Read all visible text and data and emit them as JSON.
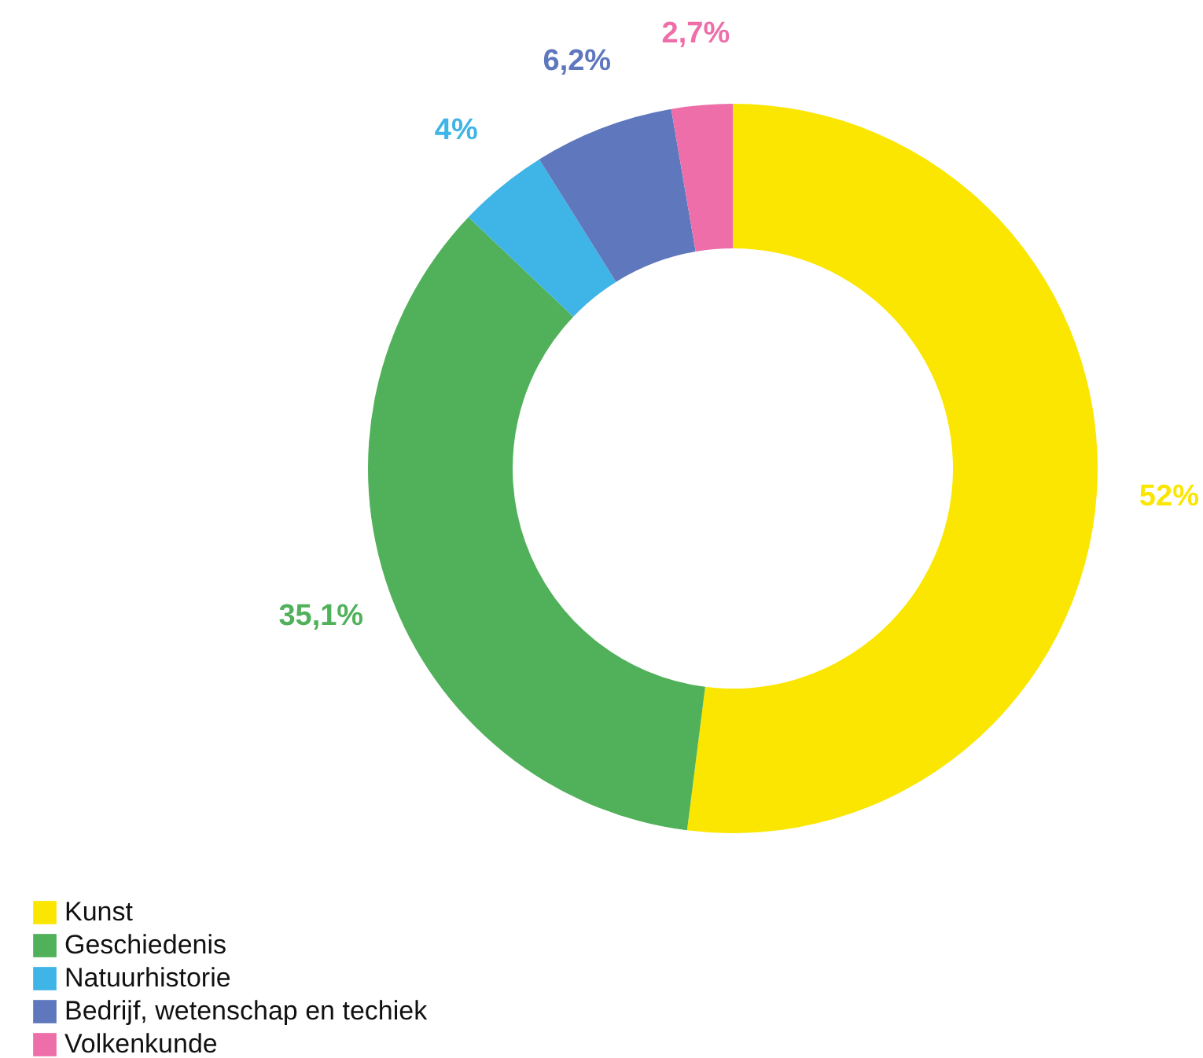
{
  "chart_data": {
    "type": "donut",
    "categories": [
      "Kunst",
      "Geschiedenis",
      "Natuurhistorie",
      "Bedrijf, wetenschap en techiek",
      "Volkenkunde"
    ],
    "values": [
      52,
      35.1,
      4,
      6.2,
      2.7
    ],
    "value_labels": [
      "52%",
      "35,1%",
      "4%",
      "6,2%",
      "2,7%"
    ],
    "colors": [
      "#fae600",
      "#50b15a",
      "#3fb4e6",
      "#5e77bd",
      "#ee6ea9"
    ],
    "legend": "bottom left"
  }
}
